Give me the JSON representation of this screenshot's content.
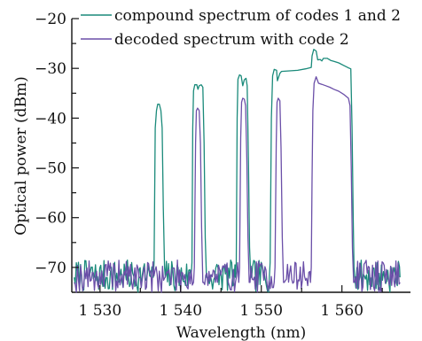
{
  "chart_data": {
    "type": "line",
    "xlabel": "Wavelength (nm)",
    "ylabel": "Optical power (dBm)",
    "xlim": [
      1526.5,
      1568.5
    ],
    "ylim": [
      -75,
      -20
    ],
    "xticks": [
      1530,
      1540,
      1550,
      1560
    ],
    "xtick_labels": [
      "1 530",
      "1 540",
      "1 550",
      "1 560"
    ],
    "yticks": [
      -70,
      -60,
      -50,
      -40,
      -30,
      -20
    ],
    "ytick_labels": [
      "−70",
      "−60",
      "−50",
      "−40",
      "−30",
      "−20"
    ],
    "legend_position": "top",
    "grid": false,
    "series": [
      {
        "name": "compound spectrum of codes 1 and 2",
        "color": "#1a8a7a",
        "noise_seed": 7,
        "points": [
          [
            1526.8,
            -72
          ],
          [
            1536.6,
            -72
          ],
          [
            1536.7,
            -69
          ],
          [
            1536.85,
            -42
          ],
          [
            1537.0,
            -38.5
          ],
          [
            1537.15,
            -37.2
          ],
          [
            1537.35,
            -37.2
          ],
          [
            1537.55,
            -38.5
          ],
          [
            1537.7,
            -42
          ],
          [
            1537.85,
            -58
          ],
          [
            1538.0,
            -70
          ],
          [
            1538.1,
            -72
          ],
          [
            1541.3,
            -72
          ],
          [
            1541.4,
            -69
          ],
          [
            1541.5,
            -42
          ],
          [
            1541.6,
            -34.5
          ],
          [
            1541.75,
            -33.3
          ],
          [
            1542.0,
            -33.3
          ],
          [
            1542.15,
            -34.2
          ],
          [
            1542.3,
            -33.5
          ],
          [
            1542.55,
            -33.3
          ],
          [
            1542.75,
            -33.8
          ],
          [
            1542.9,
            -45
          ],
          [
            1543.05,
            -64
          ],
          [
            1543.2,
            -72
          ],
          [
            1543.3,
            -72
          ],
          [
            1546.8,
            -72
          ],
          [
            1546.9,
            -69
          ],
          [
            1547.0,
            -40
          ],
          [
            1547.1,
            -32.2
          ],
          [
            1547.3,
            -31.3
          ],
          [
            1547.5,
            -31.5
          ],
          [
            1547.7,
            -33.5
          ],
          [
            1547.9,
            -32.3
          ],
          [
            1548.1,
            -32.0
          ],
          [
            1548.25,
            -33.5
          ],
          [
            1548.4,
            -48
          ],
          [
            1548.55,
            -66
          ],
          [
            1548.7,
            -72
          ],
          [
            1548.8,
            -72
          ],
          [
            1551.0,
            -72
          ],
          [
            1551.1,
            -69
          ],
          [
            1551.25,
            -40
          ],
          [
            1551.4,
            -31.5
          ],
          [
            1551.6,
            -30.2
          ],
          [
            1551.9,
            -30.4
          ],
          [
            1552.0,
            -32.5
          ],
          [
            1552.3,
            -31.0
          ],
          [
            1552.5,
            -30.6
          ],
          [
            1553.5,
            -30.5
          ],
          [
            1554.5,
            -30.4
          ],
          [
            1555.5,
            -30.1
          ],
          [
            1556.2,
            -29.8
          ],
          [
            1556.3,
            -27.5
          ],
          [
            1556.5,
            -26.2
          ],
          [
            1556.8,
            -26.5
          ],
          [
            1557.0,
            -28.3
          ],
          [
            1557.3,
            -28.2
          ],
          [
            1557.5,
            -28.5
          ],
          [
            1557.7,
            -28.0
          ],
          [
            1558.2,
            -28.0
          ],
          [
            1558.6,
            -28.4
          ],
          [
            1559.0,
            -28.6
          ],
          [
            1559.6,
            -28.9
          ],
          [
            1560.2,
            -29.4
          ],
          [
            1560.8,
            -29.9
          ],
          [
            1561.1,
            -30.1
          ],
          [
            1561.25,
            -42
          ],
          [
            1561.4,
            -60
          ],
          [
            1561.5,
            -70
          ],
          [
            1561.6,
            -72
          ],
          [
            1567.2,
            -72
          ]
        ]
      },
      {
        "name": "decoded spectrum with code 2",
        "color": "#6b4fa8",
        "noise_seed": 19,
        "points": [
          [
            1526.8,
            -73
          ],
          [
            1541.6,
            -73
          ],
          [
            1541.7,
            -70
          ],
          [
            1541.85,
            -45
          ],
          [
            1541.95,
            -38.5
          ],
          [
            1542.1,
            -38.0
          ],
          [
            1542.3,
            -38.5
          ],
          [
            1542.45,
            -45
          ],
          [
            1542.6,
            -62
          ],
          [
            1542.75,
            -73
          ],
          [
            1542.85,
            -73
          ],
          [
            1547.2,
            -73
          ],
          [
            1547.3,
            -70
          ],
          [
            1547.45,
            -44
          ],
          [
            1547.55,
            -36.8
          ],
          [
            1547.7,
            -36.0
          ],
          [
            1547.9,
            -36.2
          ],
          [
            1548.05,
            -37.5
          ],
          [
            1548.2,
            -48
          ],
          [
            1548.35,
            -64
          ],
          [
            1548.5,
            -73
          ],
          [
            1548.6,
            -73
          ],
          [
            1551.6,
            -73
          ],
          [
            1551.7,
            -70
          ],
          [
            1551.85,
            -45
          ],
          [
            1551.95,
            -36.8
          ],
          [
            1552.1,
            -36.0
          ],
          [
            1552.3,
            -36.5
          ],
          [
            1552.45,
            -46
          ],
          [
            1552.6,
            -64
          ],
          [
            1552.75,
            -73
          ],
          [
            1552.85,
            -73
          ],
          [
            1556.1,
            -73
          ],
          [
            1556.2,
            -70
          ],
          [
            1556.3,
            -52
          ],
          [
            1556.4,
            -38.5
          ],
          [
            1556.55,
            -33.0
          ],
          [
            1556.8,
            -31.7
          ],
          [
            1557.1,
            -33.0
          ],
          [
            1557.5,
            -33.2
          ],
          [
            1558.0,
            -33.5
          ],
          [
            1558.5,
            -33.8
          ],
          [
            1559.0,
            -34.2
          ],
          [
            1559.6,
            -34.6
          ],
          [
            1560.2,
            -35.2
          ],
          [
            1560.8,
            -36.0
          ],
          [
            1561.0,
            -37.5
          ],
          [
            1561.15,
            -50
          ],
          [
            1561.3,
            -66
          ],
          [
            1561.45,
            -73
          ],
          [
            1561.55,
            -73
          ],
          [
            1567.2,
            -73
          ]
        ]
      }
    ]
  }
}
